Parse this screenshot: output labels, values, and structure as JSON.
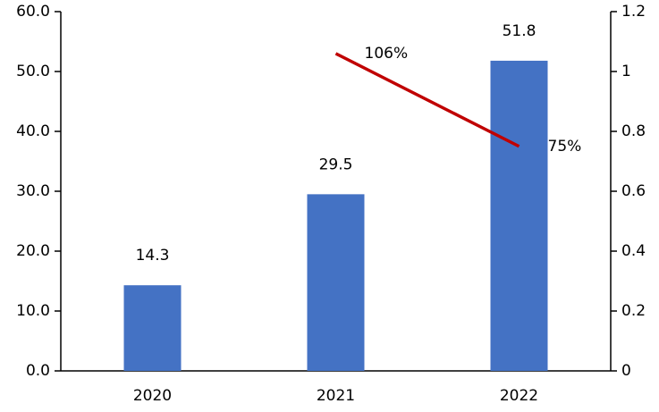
{
  "chart_data": {
    "type": "bar",
    "categories": [
      "2020",
      "2021",
      "2022"
    ],
    "series": [
      {
        "type": "bar",
        "color": "#4472c4",
        "values": [
          14.3,
          29.5,
          51.8
        ]
      },
      {
        "type": "line",
        "axis": "y2",
        "color": "#c00000",
        "values": [
          null,
          1.06,
          0.75
        ],
        "value_labels": [
          null,
          "106%",
          "75%"
        ]
      }
    ],
    "ylim": [
      0,
      60
    ],
    "yticks": [
      {
        "value": 0,
        "label": "0.0"
      },
      {
        "value": 10,
        "label": "10.0"
      },
      {
        "value": 20,
        "label": "20.0"
      },
      {
        "value": 30,
        "label": "30.0"
      },
      {
        "value": 40,
        "label": "40.0"
      },
      {
        "value": 50,
        "label": "50.0"
      },
      {
        "value": 60,
        "label": "60.0"
      }
    ],
    "y2lim": [
      0,
      1.2
    ],
    "y2ticks": [
      0,
      0.2,
      0.4,
      0.6,
      0.8,
      1,
      1.2
    ],
    "grid": false
  }
}
